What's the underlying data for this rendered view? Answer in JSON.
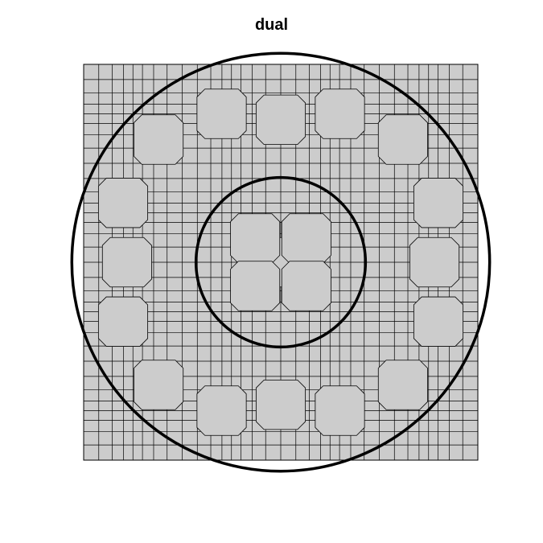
{
  "title": "dual",
  "style": {
    "mesh_fill": "#cccccc",
    "mesh_stroke": "#000000",
    "circle_stroke": "#000000",
    "background": "#ffffff"
  },
  "mesh": {
    "type": "dual-mesh",
    "domain": {
      "x": [
        -1,
        1
      ],
      "y": [
        -1,
        1
      ]
    },
    "grid_divisions": 32
  },
  "circles": [
    {
      "name": "outer-circle",
      "cx": 0,
      "cy": 0,
      "r": 1.06
    },
    {
      "name": "inner-circle",
      "cx": 0,
      "cy": 0,
      "r": 0.43
    }
  ]
}
